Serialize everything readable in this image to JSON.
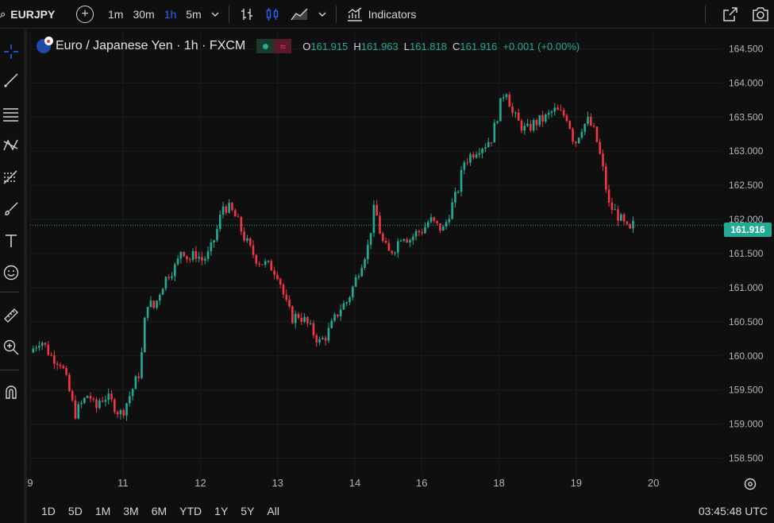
{
  "toolbar": {
    "symbol": "EURJPY",
    "intervals": [
      "1m",
      "30m",
      "1h",
      "5m"
    ],
    "active_interval": "1h",
    "indicators_label": "Indicators"
  },
  "legend": {
    "title": "Euro / Japanese Yen · 1h · FXCM",
    "open_key": "O",
    "open": "161.915",
    "high_key": "H",
    "high": "161.963",
    "low_key": "L",
    "low": "161.818",
    "close_key": "C",
    "close": "161.916",
    "change": "+0.001 (+0.00%)"
  },
  "bottom": {
    "ranges": [
      "1D",
      "5D",
      "1M",
      "3M",
      "6M",
      "YTD",
      "1Y",
      "5Y",
      "All"
    ],
    "clock": "03:45:48 UTC"
  },
  "colors": {
    "up": "#22ab94",
    "down": "#f23645",
    "background": "#0f0f0f",
    "grid": "#1c1c1c",
    "accent": "#2962ff"
  },
  "chart_data": {
    "type": "candlestick",
    "title": "Euro / Japanese Yen · 1h · FXCM",
    "current_price": "161.916",
    "ylim": [
      158.25,
      164.75
    ],
    "y_ticks": [
      "164.500",
      "164.000",
      "163.500",
      "163.000",
      "162.500",
      "162.000",
      "161.500",
      "161.000",
      "160.500",
      "160.000",
      "159.500",
      "159.000",
      "158.500"
    ],
    "x_ticks": [
      {
        "label": "9",
        "pos": 0.0
      },
      {
        "label": "11",
        "pos": 0.1347
      },
      {
        "label": "12",
        "pos": 0.2471
      },
      {
        "label": "13",
        "pos": 0.3591
      },
      {
        "label": "14",
        "pos": 0.4712
      },
      {
        "label": "16",
        "pos": 0.5683
      },
      {
        "label": "18",
        "pos": 0.6804
      },
      {
        "label": "19",
        "pos": 0.7924
      },
      {
        "label": "20",
        "pos": 0.9045
      }
    ],
    "grid": true,
    "close_path": [
      [
        0,
        160.05
      ],
      [
        0.015,
        160.25
      ],
      [
        0.03,
        160.0
      ],
      [
        0.045,
        159.9
      ],
      [
        0.055,
        159.55
      ],
      [
        0.065,
        159.15
      ],
      [
        0.075,
        159.3
      ],
      [
        0.085,
        159.45
      ],
      [
        0.095,
        159.2
      ],
      [
        0.1,
        159.35
      ],
      [
        0.11,
        159.4
      ],
      [
        0.12,
        159.3
      ],
      [
        0.13,
        159.15
      ],
      [
        0.135,
        159.2
      ],
      [
        0.15,
        159.55
      ],
      [
        0.16,
        159.8
      ],
      [
        0.165,
        160.4
      ],
      [
        0.17,
        160.8
      ],
      [
        0.18,
        160.7
      ],
      [
        0.19,
        161.0
      ],
      [
        0.2,
        161.2
      ],
      [
        0.21,
        161.3
      ],
      [
        0.215,
        161.4
      ],
      [
        0.22,
        161.6
      ],
      [
        0.23,
        161.4
      ],
      [
        0.24,
        161.5
      ],
      [
        0.25,
        161.4
      ],
      [
        0.26,
        161.5
      ],
      [
        0.27,
        161.8
      ],
      [
        0.28,
        162.2
      ],
      [
        0.29,
        162.15
      ],
      [
        0.3,
        162.0
      ],
      [
        0.31,
        161.75
      ],
      [
        0.32,
        161.55
      ],
      [
        0.33,
        161.4
      ],
      [
        0.34,
        161.35
      ],
      [
        0.35,
        161.3
      ],
      [
        0.36,
        161.2
      ],
      [
        0.37,
        160.8
      ],
      [
        0.38,
        160.55
      ],
      [
        0.39,
        160.6
      ],
      [
        0.4,
        160.5
      ],
      [
        0.41,
        160.35
      ],
      [
        0.42,
        160.2
      ],
      [
        0.43,
        160.3
      ],
      [
        0.44,
        160.5
      ],
      [
        0.45,
        160.7
      ],
      [
        0.46,
        160.8
      ],
      [
        0.47,
        161.05
      ],
      [
        0.48,
        161.35
      ],
      [
        0.49,
        161.6
      ],
      [
        0.5,
        162.2
      ],
      [
        0.51,
        161.7
      ],
      [
        0.52,
        161.5
      ],
      [
        0.53,
        161.6
      ],
      [
        0.54,
        161.8
      ],
      [
        0.55,
        161.7
      ],
      [
        0.56,
        161.8
      ],
      [
        0.57,
        161.85
      ],
      [
        0.58,
        162.0
      ],
      [
        0.59,
        161.9
      ],
      [
        0.6,
        161.85
      ],
      [
        0.61,
        162.15
      ],
      [
        0.62,
        162.4
      ],
      [
        0.63,
        162.85
      ],
      [
        0.64,
        162.95
      ],
      [
        0.65,
        163.05
      ],
      [
        0.66,
        163.1
      ],
      [
        0.67,
        163.2
      ],
      [
        0.68,
        163.6
      ],
      [
        0.69,
        163.95
      ],
      [
        0.7,
        163.55
      ],
      [
        0.71,
        163.4
      ],
      [
        0.72,
        163.3
      ],
      [
        0.73,
        163.4
      ],
      [
        0.74,
        163.45
      ],
      [
        0.75,
        163.5
      ],
      [
        0.76,
        163.6
      ],
      [
        0.77,
        163.55
      ],
      [
        0.78,
        163.5
      ],
      [
        0.79,
        163.1
      ],
      [
        0.8,
        163.35
      ],
      [
        0.81,
        163.45
      ],
      [
        0.82,
        163.25
      ],
      [
        0.83,
        162.8
      ],
      [
        0.84,
        162.2
      ],
      [
        0.85,
        162.1
      ],
      [
        0.86,
        161.95
      ],
      [
        0.87,
        161.8
      ],
      [
        0.875,
        161.916
      ]
    ]
  }
}
